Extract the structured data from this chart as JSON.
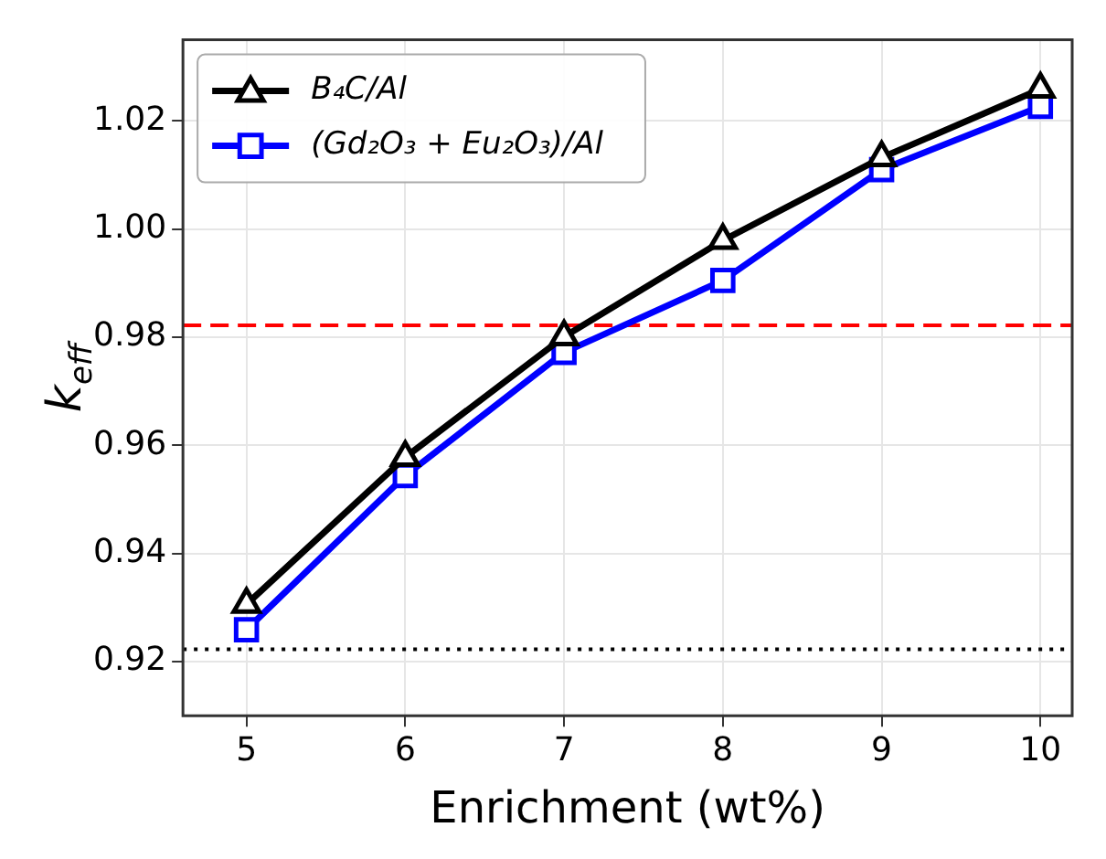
{
  "chart_data": {
    "type": "line",
    "xlabel": "Enrichment (wt%)",
    "ylabel": "k$_{eff}$",
    "x": [
      5,
      6,
      7,
      8,
      9,
      10
    ],
    "series": [
      {
        "name": "B₄C/Al",
        "color": "#000000",
        "marker": "triangle",
        "values": [
          0.9306,
          0.9578,
          0.9801,
          0.9979,
          1.0132,
          1.0259
        ]
      },
      {
        "name": "(Gd₂O₃ + Eu₂O₃)/Al",
        "color": "#0000ff",
        "marker": "square",
        "values": [
          0.9259,
          0.9544,
          0.9772,
          0.9905,
          1.011,
          1.0227
        ]
      }
    ],
    "xlim": [
      4.6,
      10.2
    ],
    "xticks": [
      5,
      6,
      7,
      8,
      9,
      10
    ],
    "ylim": [
      0.91,
      1.035
    ],
    "yticks": [
      {
        "value": 0.92,
        "label": "0.92"
      },
      {
        "value": 0.94,
        "label": "0.94"
      },
      {
        "value": 0.96,
        "label": "0.96"
      },
      {
        "value": 0.98,
        "label": "0.98"
      },
      {
        "value": 1.0,
        "label": "1.00"
      },
      {
        "value": 1.02,
        "label": "1.02"
      }
    ],
    "ref_lines": [
      {
        "axis": "y",
        "value": 0.9822,
        "color": "#ff0000",
        "line_style": "dashed"
      },
      {
        "axis": "y",
        "value": 0.9223,
        "color": "#000000",
        "line_style": "dotted"
      }
    ],
    "grid": true,
    "legend": "top left",
    "line_style": "solid"
  }
}
